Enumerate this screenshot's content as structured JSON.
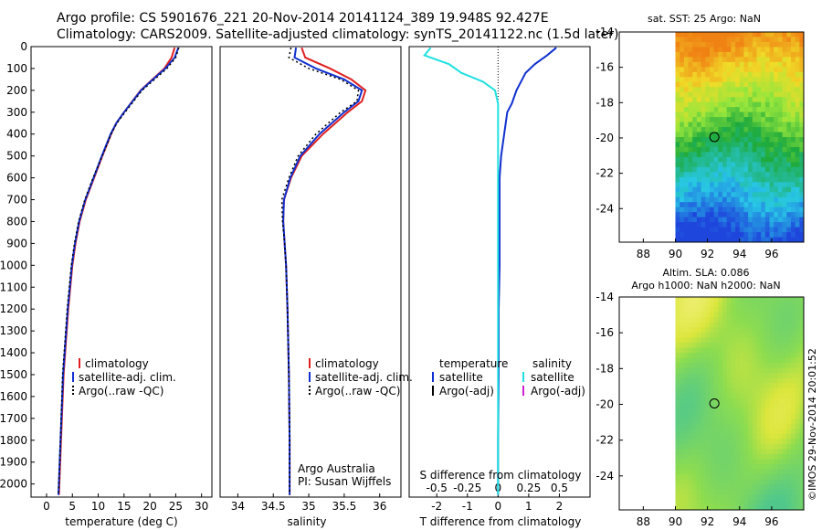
{
  "header": {
    "line1": "Argo profile: CS 5901676_221 20-Nov-2014 20141124_389 19.948S 92.427E",
    "line2": "Climatology: CARS2009. Satellite-adjusted climatology: synTS_20141122.nc (1.5d later)"
  },
  "colors": {
    "climatology": "#e02020",
    "satellite": "#1030d0",
    "argo": "#000000",
    "salinity_satellite": "#20e0e0",
    "salinity_argo": "#d020d0"
  },
  "chart_data": [
    {
      "type": "line",
      "title": "",
      "xlabel": "temperature (deg C)",
      "ylabel": "",
      "xlim": [
        -3,
        32
      ],
      "ylim": [
        2060,
        0
      ],
      "x_ticks": [
        0,
        5,
        10,
        15,
        20,
        25,
        30
      ],
      "y_ticks": [
        0,
        100,
        200,
        300,
        400,
        500,
        600,
        700,
        800,
        900,
        1000,
        1100,
        1200,
        1300,
        1400,
        1500,
        1600,
        1700,
        1800,
        1900,
        2000
      ],
      "series": [
        {
          "name": "climatology",
          "color": "#e02020",
          "depth": [
            5,
            50,
            100,
            150,
            200,
            300,
            350,
            400,
            500,
            600,
            700,
            800,
            900,
            1000,
            1200,
            1500,
            1800,
            2050
          ],
          "values": [
            24.8,
            24.2,
            22.8,
            20.5,
            18.2,
            15.0,
            13.5,
            12.5,
            10.8,
            9.2,
            7.6,
            6.4,
            5.6,
            5.0,
            4.2,
            3.3,
            2.8,
            2.4
          ]
        },
        {
          "name": "satellite-adj. clim.",
          "color": "#1030d0",
          "depth": [
            5,
            50,
            100,
            150,
            200,
            300,
            350,
            400,
            500,
            600,
            700,
            800,
            900,
            1000,
            1200,
            1500,
            1800,
            2050
          ],
          "values": [
            25.5,
            24.8,
            23.0,
            20.6,
            18.3,
            15.0,
            13.5,
            12.4,
            10.7,
            9.1,
            7.5,
            6.3,
            5.5,
            4.9,
            4.1,
            3.2,
            2.7,
            2.3
          ]
        },
        {
          "name": "Argo(..raw -QC)",
          "color": "#000000",
          "depth": [
            5,
            50,
            100,
            150,
            200,
            300,
            350,
            400,
            500,
            600,
            700,
            800,
            900,
            1000,
            1200,
            1500,
            1800,
            2050
          ],
          "values": [
            25.6,
            25.0,
            23.3,
            20.9,
            18.5,
            15.2,
            13.6,
            12.5,
            10.8,
            9.0,
            7.4,
            6.2,
            5.4,
            4.8,
            4.0,
            3.1,
            2.7,
            2.3
          ]
        }
      ],
      "legend": [
        "climatology",
        "satellite-adj. clim.",
        "Argo(..raw -QC)"
      ]
    },
    {
      "type": "line",
      "xlabel": "salinity",
      "xlim": [
        33.75,
        36.3
      ],
      "ylim": [
        2060,
        0
      ],
      "x_ticks": [
        34,
        34.5,
        35,
        35.5,
        36
      ],
      "series": [
        {
          "name": "climatology",
          "color": "#e02020",
          "depth": [
            5,
            50,
            100,
            150,
            200,
            250,
            300,
            400,
            500,
            600,
            700,
            800,
            900,
            1000,
            1200,
            1500,
            1800,
            2050
          ],
          "values": [
            34.9,
            34.95,
            35.3,
            35.6,
            35.8,
            35.75,
            35.55,
            35.2,
            34.9,
            34.75,
            34.65,
            34.64,
            34.66,
            34.68,
            34.7,
            34.72,
            34.73,
            34.73
          ]
        },
        {
          "name": "satellite-adj. clim.",
          "color": "#1030d0",
          "depth": [
            5,
            50,
            100,
            150,
            200,
            250,
            300,
            400,
            500,
            600,
            700,
            800,
            900,
            1000,
            1200,
            1500,
            1800,
            2050
          ],
          "values": [
            34.82,
            34.8,
            35.1,
            35.5,
            35.75,
            35.7,
            35.5,
            35.15,
            34.88,
            34.74,
            34.65,
            34.64,
            34.66,
            34.68,
            34.7,
            34.72,
            34.73,
            34.73
          ]
        },
        {
          "name": "Argo(..raw -QC)",
          "color": "#000000",
          "depth": [
            5,
            50,
            100,
            150,
            200,
            250,
            300,
            400,
            500,
            600,
            700,
            800,
            900,
            1000,
            1200,
            1500,
            1800,
            2050
          ],
          "values": [
            34.75,
            34.72,
            35.0,
            35.45,
            35.7,
            35.68,
            35.45,
            35.1,
            34.85,
            34.72,
            34.62,
            34.63,
            34.66,
            34.68,
            34.7,
            34.72,
            34.73,
            34.73
          ]
        }
      ],
      "legend": [
        "climatology",
        "satellite-adj. clim.",
        "Argo(..raw -QC)"
      ],
      "annotation": [
        "Argo Australia",
        "PI: Susan Wijffels"
      ]
    },
    {
      "type": "line",
      "xlabel": "T difference from climatology",
      "xlabel_top": "S difference from climatology",
      "xlim": [
        -2.9,
        3.0
      ],
      "ylim": [
        2060,
        0
      ],
      "x_ticks": [
        -2,
        -1,
        0,
        1,
        2
      ],
      "top_ticks": [
        {
          "value": -0.5,
          "label": "-0.5"
        },
        {
          "value": -0.25,
          "label": "-0.25"
        },
        {
          "value": 0,
          "label": "0"
        },
        {
          "value": 0.25,
          "label": "0.25"
        },
        {
          "value": 0.5,
          "label": "0.5"
        }
      ],
      "series": [
        {
          "name": "temperature satellite",
          "color": "#1030d0",
          "depth": [
            5,
            40,
            80,
            120,
            160,
            200,
            260,
            300,
            400,
            500,
            600,
            800,
            1000,
            1200,
            1500,
            1800,
            2050
          ],
          "values": [
            1.9,
            1.6,
            1.2,
            0.9,
            0.75,
            0.6,
            0.45,
            0.3,
            0.2,
            0.1,
            0.05,
            0.05,
            0.05,
            0.02,
            0.02,
            0.0,
            0.0
          ]
        },
        {
          "name": "salinity satellite",
          "color": "#20e0e0",
          "depth": [
            5,
            40,
            80,
            120,
            160,
            200,
            260,
            300,
            400,
            500,
            600,
            800,
            1000,
            1200,
            1500,
            1800,
            2050
          ],
          "values": [
            -2.2,
            -2.4,
            -1.6,
            -1.2,
            -0.5,
            -0.1,
            0.0,
            0.0,
            0.0,
            0.0,
            0.0,
            0.0,
            0.0,
            0.0,
            0.0,
            0.0,
            0.0
          ]
        }
      ],
      "legend_temperature": {
        "title": "temperature",
        "items": [
          "satellite",
          "Argo(-adj)"
        ]
      },
      "legend_salinity": {
        "title": "salinity",
        "items": [
          "satellite",
          "Argo(-adj)"
        ]
      }
    },
    {
      "type": "heatmap",
      "title": "sat. SST: 25 Argo: NaN",
      "xlim": [
        86.5,
        98
      ],
      "ylim": [
        -25.9,
        -14
      ],
      "x_ticks": [
        88,
        90,
        92,
        94,
        96
      ],
      "y_ticks": [
        -14,
        -16,
        -18,
        -20,
        -22,
        -24
      ],
      "marker": {
        "lon": 92.43,
        "lat": -19.95
      }
    },
    {
      "type": "heatmap",
      "title": "Altim. SLA: 0.086",
      "subtitle": "Argo h1000: NaN h2000: NaN",
      "xlim": [
        86.5,
        98
      ],
      "ylim": [
        -25.9,
        -14
      ],
      "x_ticks": [
        88,
        90,
        92,
        94,
        96
      ],
      "y_ticks": [
        -14,
        -16,
        -18,
        -20,
        -22,
        -24
      ],
      "marker": {
        "lon": 92.43,
        "lat": -19.95
      }
    }
  ],
  "footer_credit": "©IMOS 29-Nov-2014 20:01:52"
}
